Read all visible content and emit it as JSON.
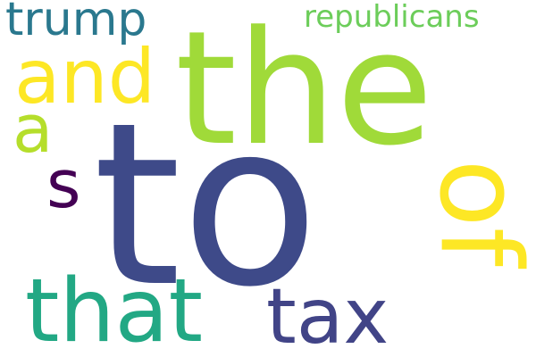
{
  "words": [
    {
      "id": "the",
      "text": "the",
      "color": "#a0da39"
    },
    {
      "id": "to",
      "text": "to",
      "color": "#3e4a89"
    },
    {
      "id": "of",
      "text": "of",
      "color": "#fde725"
    },
    {
      "id": "and",
      "text": "and",
      "color": "#fde725"
    },
    {
      "id": "that",
      "text": "that",
      "color": "#22a884"
    },
    {
      "id": "tax",
      "text": "tax",
      "color": "#414487"
    },
    {
      "id": "trump",
      "text": "trump",
      "color": "#2a788e"
    },
    {
      "id": "republicans",
      "text": "republicans",
      "color": "#6ccd5a"
    },
    {
      "id": "a",
      "text": "a",
      "color": "#b5de2b"
    },
    {
      "id": "s",
      "text": "s",
      "color": "#440154"
    }
  ]
}
